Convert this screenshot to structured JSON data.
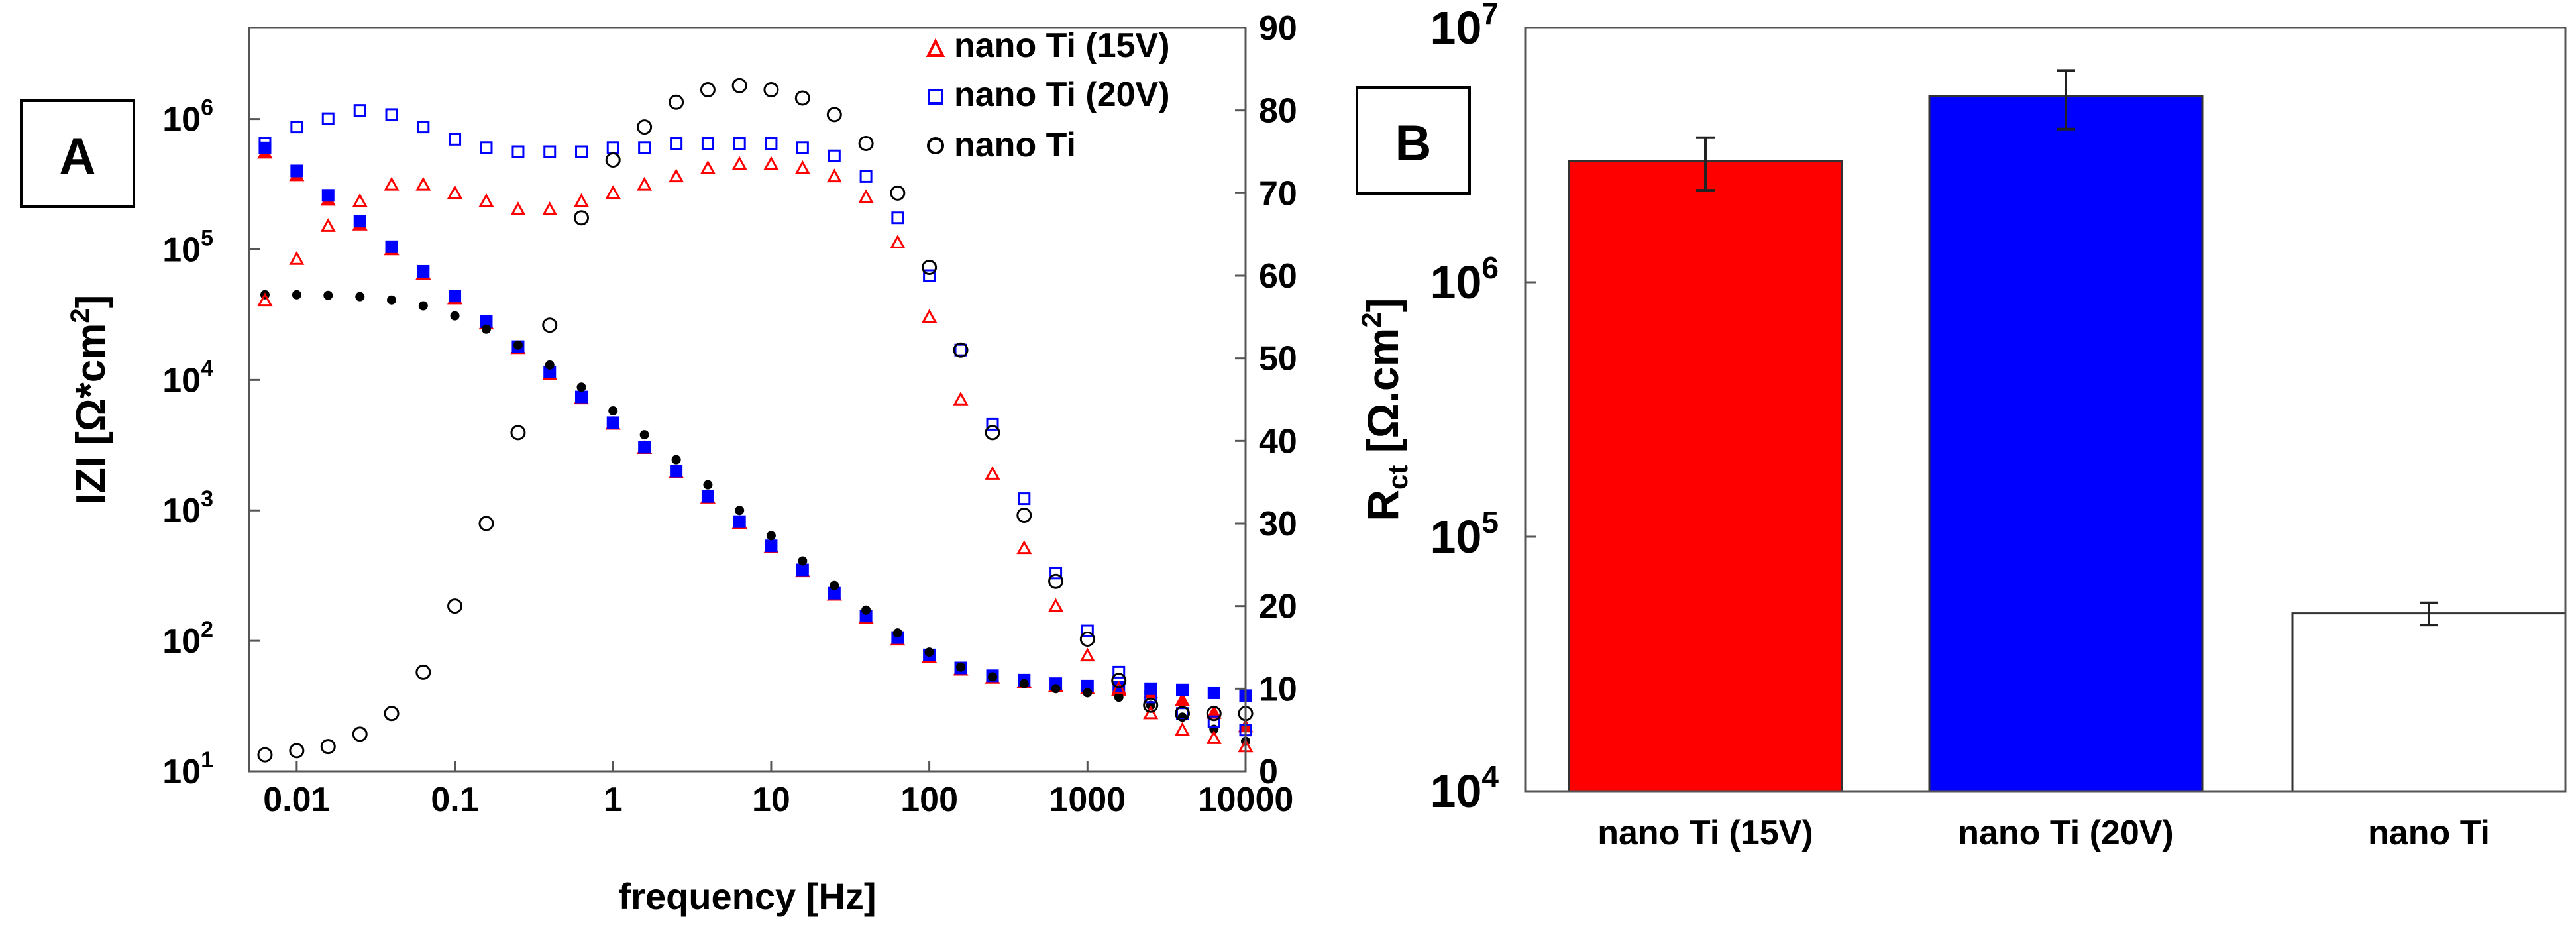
{
  "panelA": {
    "label": "A",
    "xlabel": "frequency [Hz]",
    "ylabel_main": "IZI [Ω*cm",
    "ylabel_sup": "2",
    "ylabel_end": "]",
    "x_ticks": [
      "0.01",
      "0.1",
      "1",
      "10",
      "100",
      "1000",
      "10000"
    ],
    "y_ticks": [
      {
        "base": "10",
        "exp": "1"
      },
      {
        "base": "10",
        "exp": "2"
      },
      {
        "base": "10",
        "exp": "3"
      },
      {
        "base": "10",
        "exp": "4"
      },
      {
        "base": "10",
        "exp": "5"
      },
      {
        "base": "10",
        "exp": "6"
      }
    ],
    "y2_ticks": [
      "0",
      "10",
      "20",
      "30",
      "40",
      "50",
      "60",
      "70",
      "80",
      "90"
    ],
    "legend": [
      "nano Ti (15V)",
      "nano Ti (20V)",
      "nano Ti"
    ]
  },
  "panelB": {
    "label": "B",
    "ylabel_main": "R",
    "ylabel_sub": "ct",
    "ylabel_unit": "[Ω.cm",
    "ylabel_sup": "2",
    "ylabel_end": "]",
    "y_ticks": [
      {
        "base": "10",
        "exp": "4"
      },
      {
        "base": "10",
        "exp": "5"
      },
      {
        "base": "10",
        "exp": "6"
      },
      {
        "base": "10",
        "exp": "7"
      }
    ]
  },
  "chart_data": [
    {
      "type": "scatter",
      "xlabel": "frequency [Hz]",
      "ylabel": "IZI [Ω*cm2]",
      "y2label": "",
      "xscale": "log",
      "yscale": "log",
      "xlim": [
        0.005,
        10000
      ],
      "ylim": [
        10,
        5000000
      ],
      "y2lim": [
        0,
        90
      ],
      "grid": false,
      "legend_position": "top-right",
      "x": [
        0.0063,
        0.01,
        0.0158,
        0.0251,
        0.0398,
        0.0631,
        0.1,
        0.158,
        0.251,
        0.398,
        0.631,
        1,
        1.58,
        2.51,
        3.98,
        6.31,
        10,
        15.8,
        25.1,
        39.8,
        63.1,
        100,
        158,
        251,
        398,
        631,
        1000,
        1580,
        2510,
        3980,
        6310,
        10000
      ],
      "series": [
        {
          "name": "nano Ti (15V)",
          "quantity": "|Z|",
          "axis": "left",
          "color": "#ff0000",
          "marker": "triangle",
          "values": [
            550000,
            370000,
            240000,
            155000,
            100000,
            65000,
            42000,
            27000,
            17500,
            11000,
            7200,
            4600,
            3000,
            1950,
            1250,
            800,
            520,
            340,
            225,
            150,
            102,
            75,
            60,
            52,
            48,
            45,
            43,
            42,
            40,
            35,
            28,
            22
          ]
        },
        {
          "name": "nano Ti (20V)",
          "quantity": "|Z|",
          "axis": "left",
          "color": "#0000ff",
          "marker": "square",
          "values": [
            600000,
            400000,
            260000,
            165000,
            105000,
            68000,
            44000,
            28000,
            18000,
            11500,
            7400,
            4700,
            3050,
            2000,
            1280,
            820,
            535,
            350,
            232,
            155,
            106,
            78,
            62,
            54,
            50,
            47,
            45,
            44,
            43,
            42,
            40,
            38
          ]
        },
        {
          "name": "nano Ti",
          "quantity": "|Z|",
          "axis": "left",
          "color": "#000000",
          "marker": "dot",
          "values": [
            45000,
            45000,
            44500,
            43500,
            41000,
            37000,
            31000,
            24500,
            18500,
            13000,
            8800,
            5800,
            3800,
            2450,
            1570,
            1000,
            640,
            410,
            265,
            172,
            115,
            82,
            63,
            53,
            47,
            43,
            40,
            37,
            32,
            26,
            21,
            17
          ]
        },
        {
          "name": "nano Ti (15V)",
          "quantity": "phase",
          "axis": "right",
          "color": "#ff0000",
          "marker": "triangle-open",
          "values": [
            57,
            62,
            66,
            69,
            71,
            71,
            70,
            69,
            68,
            68,
            69,
            70,
            71,
            72,
            73,
            73.5,
            73.5,
            73,
            72,
            69.5,
            64,
            55,
            45,
            36,
            27,
            20,
            14,
            10,
            7,
            5,
            4,
            3
          ]
        },
        {
          "name": "nano Ti (20V)",
          "quantity": "phase",
          "axis": "right",
          "color": "#0000ff",
          "marker": "square-open",
          "values": [
            76,
            78,
            79,
            80,
            79.5,
            78,
            76.5,
            75.5,
            75,
            75,
            75,
            75.5,
            75.5,
            76,
            76,
            76,
            76,
            75.5,
            74.5,
            72,
            67,
            60,
            51,
            42,
            33,
            24,
            17,
            12,
            9,
            7,
            6,
            5
          ]
        },
        {
          "name": "nano Ti",
          "quantity": "phase",
          "axis": "right",
          "color": "#000000",
          "marker": "circle-open",
          "values": [
            2,
            2.5,
            3,
            4.5,
            7,
            12,
            20,
            30,
            41,
            54,
            67,
            74,
            78,
            81,
            82.5,
            83,
            82.5,
            81.5,
            79.5,
            76,
            70,
            61,
            51,
            41,
            31,
            23,
            16,
            11,
            8,
            7,
            7,
            7
          ]
        }
      ]
    },
    {
      "type": "bar",
      "ylabel": "Rct [Ω.cm2]",
      "yscale": "log",
      "ylim": [
        10000,
        10000000
      ],
      "grid": false,
      "categories": [
        "nano Ti (15V)",
        "nano Ti (20V)",
        "nano  Ti"
      ],
      "values": [
        3000000,
        5400000,
        50000
      ],
      "errors": [
        700000,
        1400000,
        5000
      ],
      "colors": [
        "#ff0000",
        "#0000ff",
        "#ffffff"
      ]
    }
  ]
}
